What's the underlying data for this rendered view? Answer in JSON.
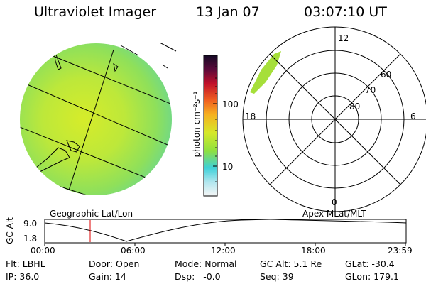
{
  "header": {
    "title": "Ultraviolet Imager",
    "date": "13 Jan 07",
    "time": "03:07:10 UT"
  },
  "colorbar": {
    "label": "photon cm⁻²s⁻¹",
    "ticks": [
      "100",
      "10"
    ],
    "scale": "log",
    "colors": [
      "#1a0b2e",
      "#c0102a",
      "#f28a1a",
      "#a6df2a",
      "#3ed0d0",
      "#ffffff"
    ]
  },
  "left_panel": {
    "label": "Geographic Lat/Lon"
  },
  "right_panel": {
    "label": "Apex MLat/MLT",
    "mlt_labels": {
      "top": "12",
      "bottom": "0",
      "left": "18",
      "right": "6"
    },
    "lat_labels": [
      "60",
      "70",
      "80"
    ]
  },
  "orbit_plot": {
    "ylabel": "GC Alt",
    "yticks": [
      "9.0",
      "1.8"
    ],
    "xticks": [
      "00:00",
      "06:00",
      "12:00",
      "18:00",
      "23:59"
    ],
    "marker_time": "03:07",
    "marker_color": "#dd0000"
  },
  "status": {
    "flt": "Flt: LBHL",
    "ip": "IP: 36.0",
    "door": "Door: Open",
    "gain": "Gain: 14",
    "mode": "Mode: Normal",
    "dsp": "Dsp:   -0.0",
    "gcalt": "GC Alt: 5.1 Re",
    "seq": "Seq: 39",
    "glat": "GLat: -30.4",
    "glon": "GLon: 179.1"
  }
}
